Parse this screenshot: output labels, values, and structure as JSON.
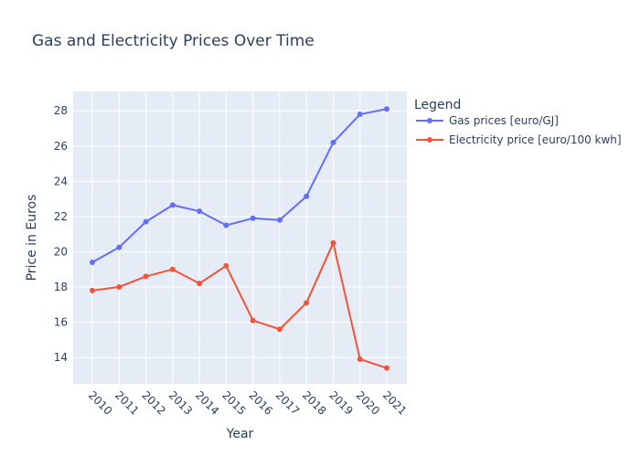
{
  "chart_data": {
    "type": "line",
    "title": "Gas and Electricity Prices Over Time",
    "xlabel": "Year",
    "ylabel": "Price in Euros",
    "categories": [
      "2010",
      "2011",
      "2012",
      "2013",
      "2014",
      "2015",
      "2016",
      "2017",
      "2018",
      "2019",
      "2020",
      "2021"
    ],
    "ylim": [
      12.5,
      29.1
    ],
    "yticks": [
      14,
      16,
      18,
      20,
      22,
      24,
      26,
      28
    ],
    "grid": true,
    "legend": {
      "title": "Legend",
      "placement": "right"
    },
    "series": [
      {
        "name": "Gas prices [euro/GJ]",
        "color": "#636efa",
        "values": [
          19.4,
          20.25,
          21.7,
          22.65,
          22.3,
          21.5,
          21.9,
          21.8,
          23.15,
          26.2,
          27.8,
          28.1
        ]
      },
      {
        "name": "Electricity price [euro/100 kwh]",
        "color": "#ef553b",
        "values": [
          17.8,
          18.0,
          18.6,
          19.0,
          18.2,
          19.2,
          16.1,
          15.6,
          17.1,
          20.5,
          13.9,
          13.4
        ]
      }
    ]
  },
  "colors": {
    "plot_background": "#e5ecf6",
    "grid": "#ffffff",
    "text": "#2a3f5f"
  }
}
